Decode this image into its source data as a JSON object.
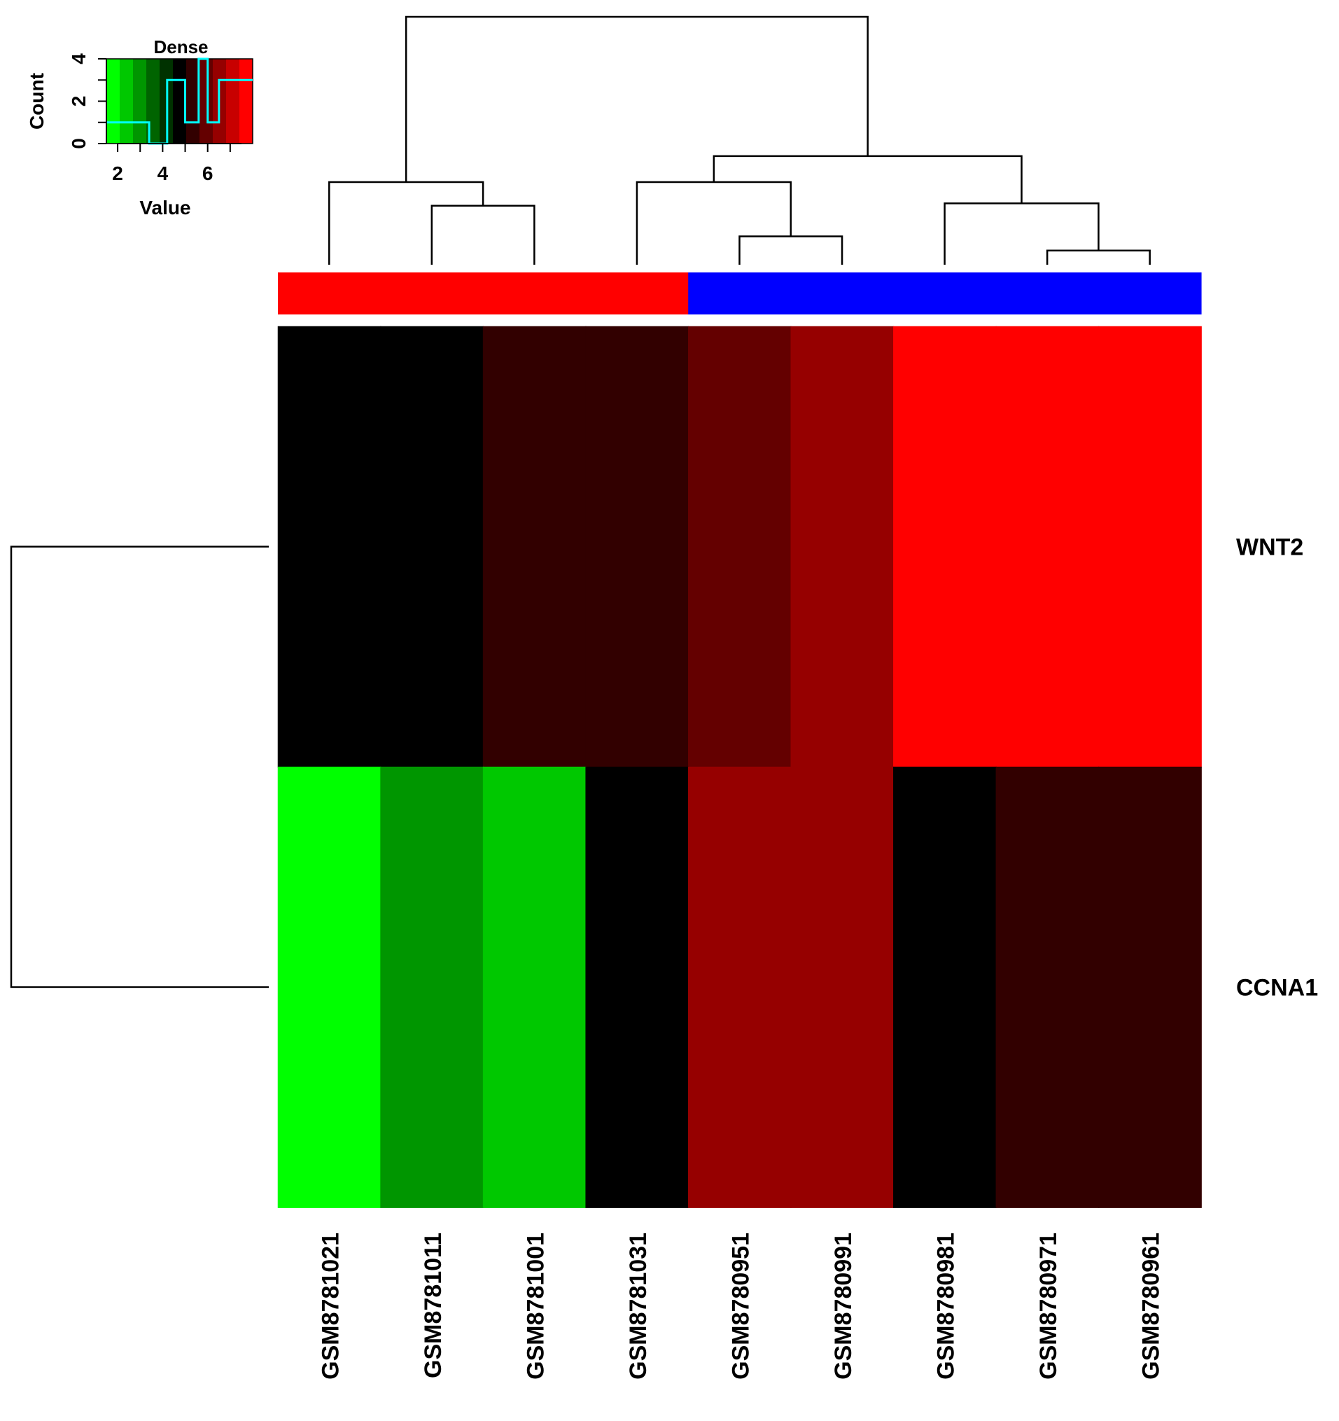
{
  "chart_data": {
    "type": "heatmap",
    "columns": [
      "GSM8781021",
      "GSM8781011",
      "GSM8781001",
      "GSM8781031",
      "GSM8780951",
      "GSM8780991",
      "GSM8780981",
      "GSM8780971",
      "GSM8780961"
    ],
    "rows": [
      "WNT2",
      "CCNA1"
    ],
    "values": [
      [
        4.5,
        4.5,
        5.3,
        5.3,
        6.0,
        6.8,
        8.0,
        8.0,
        8.0
      ],
      [
        1.8,
        3.0,
        2.3,
        4.5,
        6.8,
        6.8,
        4.5,
        5.3,
        5.3
      ]
    ],
    "column_groups": [
      {
        "color": "#ff0000",
        "members": [
          "GSM8781021",
          "GSM8781011",
          "GSM8781001",
          "GSM8781031"
        ]
      },
      {
        "color": "#0000ff",
        "members": [
          "GSM8780951",
          "GSM8780991",
          "GSM8780981",
          "GSM8780971",
          "GSM8780961"
        ]
      }
    ],
    "color_scale": {
      "min": 1.5,
      "max": 8.0,
      "colors": [
        "#00ff00",
        "#00c800",
        "#009600",
        "#006400",
        "#003200",
        "#000000",
        "#320000",
        "#640000",
        "#960000",
        "#c80000",
        "#ff0000"
      ]
    },
    "column_dendrogram": {
      "merges": [
        [
          "GSM8780971",
          "GSM8780961",
          0.6
        ],
        [
          "GSM8780951",
          "GSM8780991",
          1.2
        ],
        [
          "GSM8781011",
          "GSM8781001",
          2.5
        ],
        [
          "GSM8780981",
          "M1",
          2.6
        ],
        [
          "GSM8781031",
          "M2",
          3.5
        ],
        [
          "GSM8781021",
          "M3",
          3.5
        ],
        [
          "M5",
          "M4",
          4.6
        ],
        [
          "M6",
          "M7",
          10.5
        ]
      ]
    },
    "row_dendrogram": {
      "merges": [
        [
          "WNT2",
          "CCNA1",
          1.0
        ]
      ]
    },
    "color_key": {
      "title": "Dense",
      "xlabel": "Value",
      "ylabel": "Count",
      "x_ticks": [
        "2",
        "4",
        "6"
      ],
      "y_ticks": [
        "0",
        "2",
        "4"
      ],
      "xlim": [
        1.5,
        8.0
      ],
      "ylim": [
        0,
        4
      ],
      "density_steps": [
        [
          1.5,
          1
        ],
        [
          3.4,
          1
        ],
        [
          3.4,
          0
        ],
        [
          4.2,
          0
        ],
        [
          4.2,
          3
        ],
        [
          5.0,
          3
        ],
        [
          5.0,
          1
        ],
        [
          5.6,
          1
        ],
        [
          5.6,
          4
        ],
        [
          6.0,
          4
        ],
        [
          6.0,
          1
        ],
        [
          6.5,
          1
        ],
        [
          6.5,
          3
        ],
        [
          8.0,
          3
        ]
      ],
      "line_color": "#00ffff"
    }
  }
}
